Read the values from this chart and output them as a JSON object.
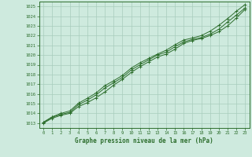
{
  "title": "",
  "xlabel": "Graphe pression niveau de la mer (hPa)",
  "ylabel": "",
  "bg_color": "#ceeade",
  "grid_color": "#a8ccbc",
  "line_color": "#2d6e2d",
  "marker_color": "#2d6e2d",
  "xlim": [
    -0.5,
    23.5
  ],
  "ylim": [
    1012.5,
    1025.5
  ],
  "yticks": [
    1013,
    1014,
    1015,
    1016,
    1017,
    1018,
    1019,
    1020,
    1021,
    1022,
    1023,
    1024,
    1025
  ],
  "xticks": [
    0,
    1,
    2,
    3,
    4,
    5,
    6,
    7,
    8,
    9,
    10,
    11,
    12,
    13,
    14,
    15,
    16,
    17,
    18,
    19,
    20,
    21,
    22,
    23
  ],
  "line1_x": [
    0,
    1,
    2,
    3,
    4,
    5,
    6,
    7,
    8,
    9,
    10,
    11,
    12,
    13,
    14,
    15,
    16,
    17,
    18,
    19,
    20,
    21,
    22,
    23
  ],
  "line1_y": [
    1013.0,
    1013.5,
    1013.8,
    1014.0,
    1014.7,
    1015.1,
    1015.6,
    1016.2,
    1016.9,
    1017.5,
    1018.2,
    1018.8,
    1019.3,
    1019.8,
    1020.1,
    1020.6,
    1021.2,
    1021.5,
    1021.7,
    1022.0,
    1022.4,
    1023.0,
    1023.8,
    1024.7
  ],
  "line2_x": [
    0,
    1,
    2,
    3,
    4,
    5,
    6,
    7,
    8,
    9,
    10,
    11,
    12,
    13,
    14,
    15,
    16,
    17,
    18,
    19,
    20,
    21,
    22,
    23
  ],
  "line2_y": [
    1013.05,
    1013.6,
    1013.9,
    1014.1,
    1014.9,
    1015.35,
    1015.9,
    1016.6,
    1017.15,
    1017.7,
    1018.45,
    1019.0,
    1019.5,
    1020.0,
    1020.3,
    1020.85,
    1021.35,
    1021.6,
    1021.8,
    1022.15,
    1022.65,
    1023.4,
    1024.1,
    1024.85
  ],
  "line3_x": [
    0,
    1,
    2,
    3,
    4,
    5,
    6,
    7,
    8,
    9,
    10,
    11,
    12,
    13,
    14,
    15,
    16,
    17,
    18,
    19,
    20,
    21,
    22,
    23
  ],
  "line3_y": [
    1013.1,
    1013.65,
    1014.0,
    1014.25,
    1015.05,
    1015.55,
    1016.1,
    1016.85,
    1017.35,
    1017.9,
    1018.65,
    1019.2,
    1019.65,
    1020.1,
    1020.5,
    1021.05,
    1021.55,
    1021.75,
    1022.0,
    1022.45,
    1023.05,
    1023.75,
    1024.5,
    1025.2
  ]
}
